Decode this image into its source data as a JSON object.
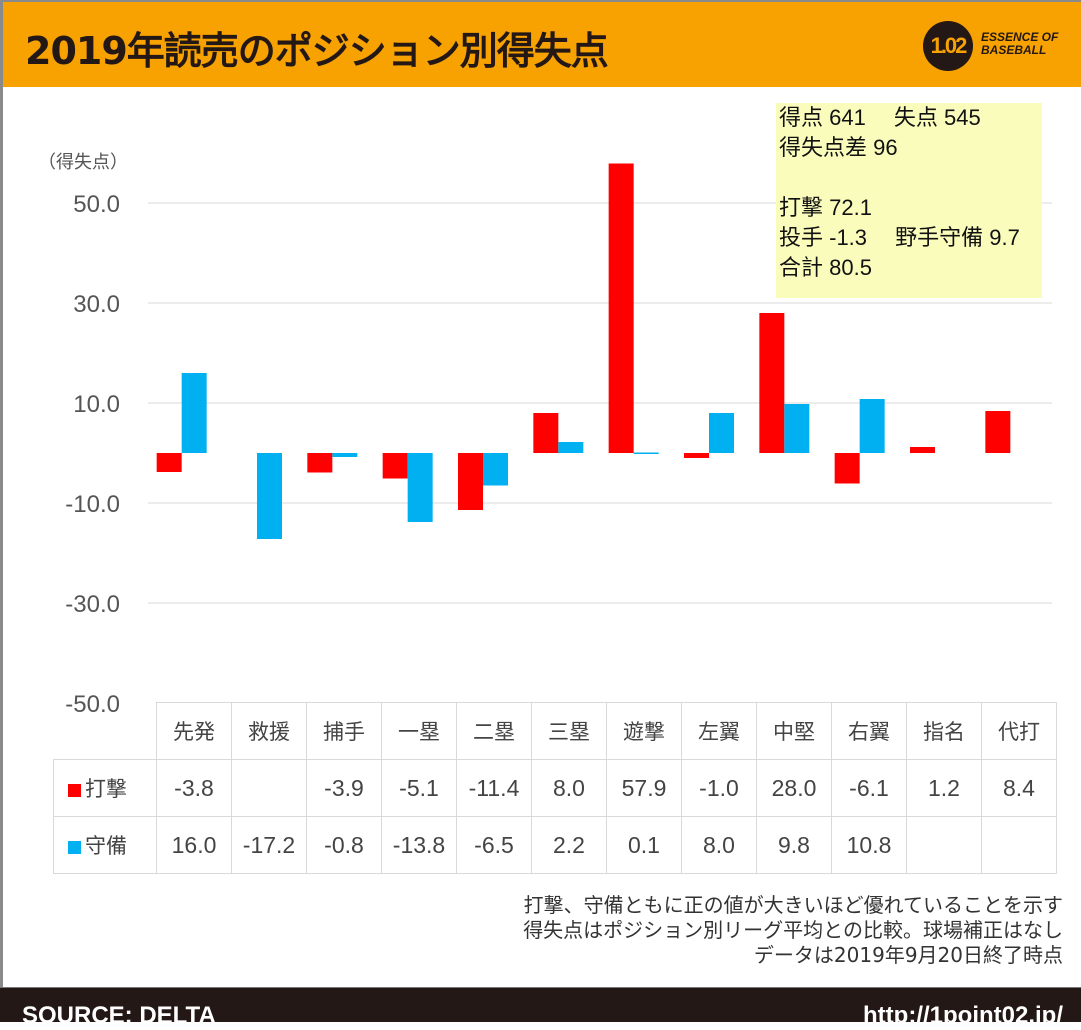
{
  "header": {
    "title": "2019年読売のポジション別得失点",
    "logo_number": "1.02",
    "logo_line1": "ESSENCE OF",
    "logo_line2": "BASEBALL"
  },
  "colors": {
    "header_bg": "#f7a200",
    "batting": "#ff0000",
    "fielding": "#00b0f0",
    "summary_bg": "#fafcbc",
    "footer_bg": "#231815"
  },
  "summary": {
    "line1": "得点 641　 失点 545",
    "line2": "得失点差 96",
    "line3": "",
    "line4": "打撃 72.1",
    "line5": "投手 -1.3　 野手守備 9.7",
    "line6": "合計 80.5"
  },
  "chart_data": {
    "type": "bar",
    "title": "2019年読売のポジション別得失点",
    "ylabel": "（得失点）",
    "xlabel": "",
    "ylim": [
      -50,
      50
    ],
    "yticks": [
      50,
      30,
      10,
      -10,
      -30,
      -50
    ],
    "ytick_labels": [
      "50.0",
      "30.0",
      "10.0",
      "-10.0",
      "-30.0",
      "-50.0"
    ],
    "grid": true,
    "legend": "table-bottom",
    "categories": [
      "先発",
      "救援",
      "捕手",
      "一塁",
      "二塁",
      "三塁",
      "遊撃",
      "左翼",
      "中堅",
      "右翼",
      "指名",
      "代打"
    ],
    "series": [
      {
        "name": "打撃",
        "color": "#ff0000",
        "values": [
          -3.8,
          null,
          -3.9,
          -5.1,
          -11.4,
          8.0,
          57.9,
          -1.0,
          28.0,
          -6.1,
          1.2,
          8.4
        ]
      },
      {
        "name": "守備",
        "color": "#00b0f0",
        "values": [
          16.0,
          -17.2,
          -0.8,
          -13.8,
          -6.5,
          2.2,
          0.1,
          8.0,
          9.8,
          10.8,
          null,
          null
        ]
      }
    ]
  },
  "table": {
    "rows": [
      {
        "label": "打撃",
        "cells": [
          "-3.8",
          "",
          "-3.9",
          "-5.1",
          "-11.4",
          "8.0",
          "57.9",
          "-1.0",
          "28.0",
          "-6.1",
          "1.2",
          "8.4"
        ]
      },
      {
        "label": "守備",
        "cells": [
          "16.0",
          "-17.2",
          "-0.8",
          "-13.8",
          "-6.5",
          "2.2",
          "0.1",
          "8.0",
          "9.8",
          "10.8",
          "",
          ""
        ]
      }
    ]
  },
  "notes": {
    "line1": "打撃、守備ともに正の値が大きいほど優れていることを示す",
    "line2": "得失点はポジション別リーグ平均との比較。球場補正はなし",
    "line3": "データは2019年9月20日終了時点"
  },
  "footer": {
    "source": "SOURCE: DELTA",
    "url": "http://1point02.jp/"
  }
}
